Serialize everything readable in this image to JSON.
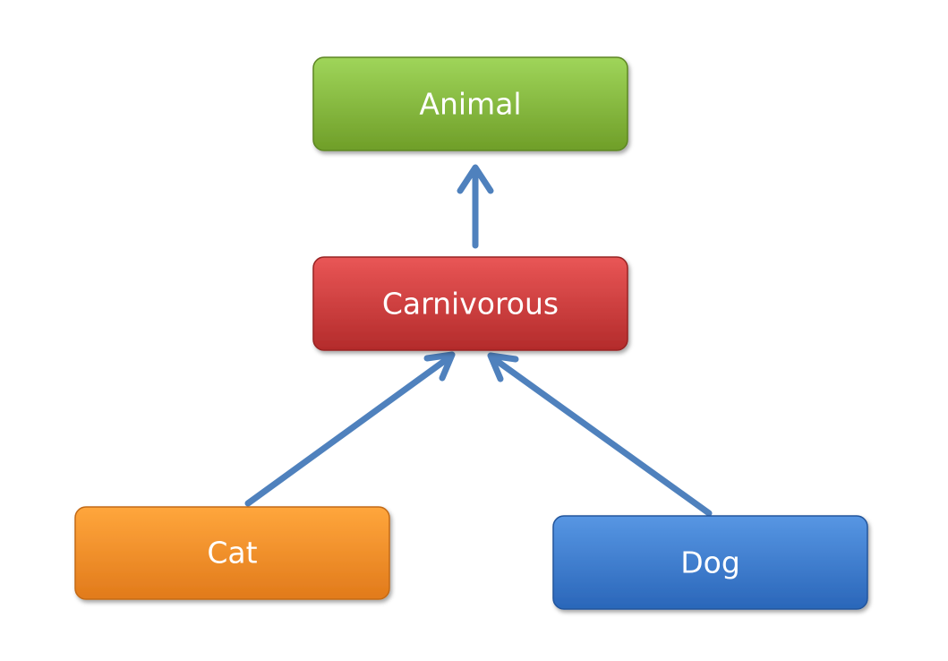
{
  "diagram": {
    "nodes": {
      "animal": {
        "label": "Animal",
        "fill_top": "#9fd55a",
        "fill_bottom": "#6f9e28",
        "border": "#5d8623"
      },
      "carnivorous": {
        "label": "Carnivorous",
        "fill_top": "#e95656",
        "fill_bottom": "#b32b2b",
        "border": "#982424"
      },
      "cat": {
        "label": "Cat",
        "fill_top": "#ffa63c",
        "fill_bottom": "#e17a1b",
        "border": "#c36a16"
      },
      "dog": {
        "label": "Dog",
        "fill_top": "#5796e3",
        "fill_bottom": "#2a66b9",
        "border": "#22559c"
      }
    },
    "edges": [
      {
        "from": "carnivorous",
        "to": "animal"
      },
      {
        "from": "cat",
        "to": "carnivorous"
      },
      {
        "from": "dog",
        "to": "carnivorous"
      }
    ],
    "edge_color": "#4f81bd"
  }
}
